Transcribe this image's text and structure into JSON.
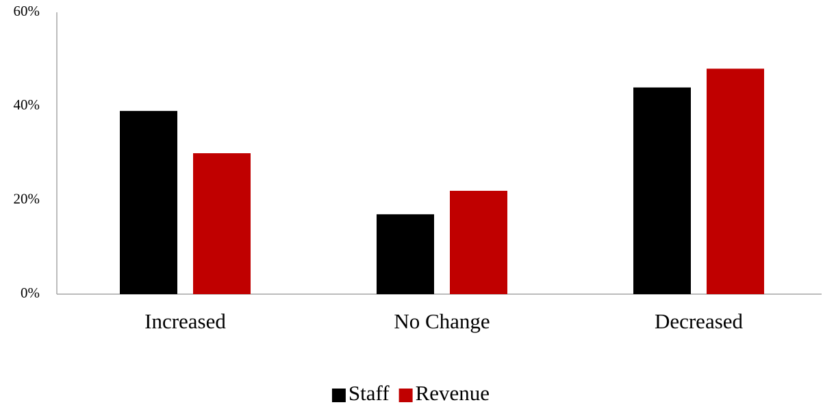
{
  "chart_data": {
    "type": "bar",
    "categories": [
      "Increased",
      "No Change",
      "Decreased"
    ],
    "series": [
      {
        "name": "Staff",
        "color": "#000000",
        "values": [
          39,
          17,
          44
        ]
      },
      {
        "name": "Revenue",
        "color": "#c00000",
        "values": [
          30,
          22,
          48
        ]
      }
    ],
    "ylim": [
      0,
      60
    ],
    "yticks": [
      {
        "value": 0,
        "label": "0%"
      },
      {
        "value": 20,
        "label": "20%"
      },
      {
        "value": 40,
        "label": "40%"
      },
      {
        "value": 60,
        "label": "60%"
      }
    ],
    "grid": false,
    "legend": "bottom"
  }
}
